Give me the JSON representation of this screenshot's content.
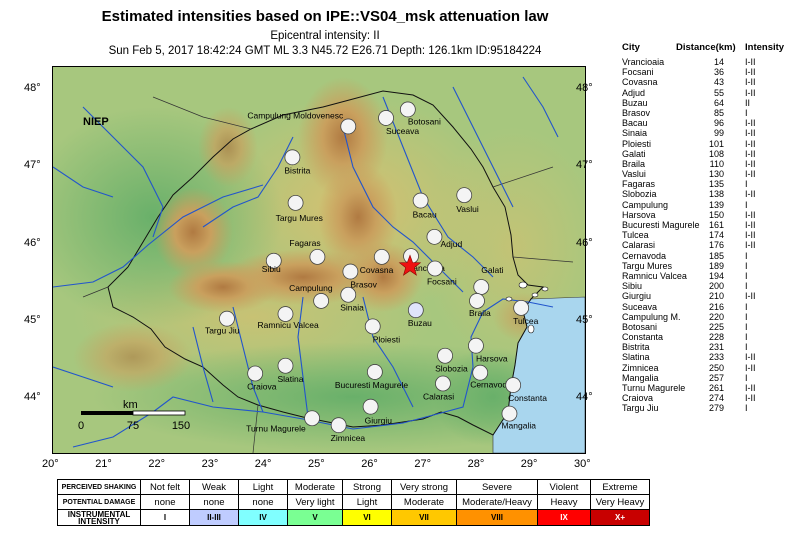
{
  "title": "Estimated intensities based on IPE::VS04_msk attenuation law",
  "epicentral": "Epicentral intensity: II",
  "event": "Sun Feb  5, 2017 18:42:24 GMT ML 3.3 N45.72 E26.71 Depth: 126.1km ID:95184224",
  "map": {
    "lon_range": [
      20,
      30
    ],
    "lat_range": [
      43.3,
      48.3
    ],
    "lon_ticks": [
      "20°",
      "21°",
      "22°",
      "23°",
      "24°",
      "25°",
      "26°",
      "27°",
      "28°",
      "29°",
      "30°"
    ],
    "lat_ticks": [
      "48°",
      "47°",
      "46°",
      "45°",
      "44°"
    ],
    "niep_label": "NIEP",
    "scale_label": "km",
    "scale_ticks": [
      "0",
      "75",
      "150"
    ],
    "epicenter": {
      "lon": 26.71,
      "lat": 45.72
    },
    "stations": [
      {
        "name": "Campulung Moldovenesc",
        "lon": 25.55,
        "lat": 47.53,
        "lx": -5,
        "ly": -8,
        "anchor": "end"
      },
      {
        "name": "Suceava",
        "lon": 26.26,
        "lat": 47.64,
        "lx": 0,
        "ly": 16,
        "anchor": "start"
      },
      {
        "name": "Botosani",
        "lon": 26.67,
        "lat": 47.75,
        "lx": 0,
        "ly": 15,
        "anchor": "start"
      },
      {
        "name": "Bistrita",
        "lon": 24.5,
        "lat": 47.13,
        "lx": -8,
        "ly": 16,
        "anchor": "start"
      },
      {
        "name": "Targu Mures",
        "lon": 24.56,
        "lat": 46.54,
        "lx": -20,
        "ly": 18,
        "anchor": "start"
      },
      {
        "name": "Bacau",
        "lon": 26.91,
        "lat": 46.57,
        "lx": -8,
        "ly": 17,
        "anchor": "start"
      },
      {
        "name": "Vaslui",
        "lon": 27.73,
        "lat": 46.64,
        "lx": -8,
        "ly": 17,
        "anchor": "start"
      },
      {
        "name": "Adjud",
        "lon": 27.17,
        "lat": 46.1,
        "lx": 6,
        "ly": 10,
        "anchor": "start"
      },
      {
        "name": "Vrancioaia",
        "lon": 26.73,
        "lat": 45.85,
        "lx": -6,
        "ly": 15,
        "anchor": "start"
      },
      {
        "name": "Focsani",
        "lon": 27.18,
        "lat": 45.69,
        "lx": -8,
        "ly": 16,
        "anchor": "start"
      },
      {
        "name": "Fagaras",
        "lon": 24.97,
        "lat": 45.84,
        "lx": -28,
        "ly": -11,
        "anchor": "start"
      },
      {
        "name": "Sibiu",
        "lon": 24.15,
        "lat": 45.79,
        "lx": -12,
        "ly": 11,
        "anchor": "start"
      },
      {
        "name": "Covasna",
        "lon": 26.18,
        "lat": 45.84,
        "lx": -22,
        "ly": 16,
        "anchor": "start"
      },
      {
        "name": "Brasov",
        "lon": 25.59,
        "lat": 45.65,
        "lx": 0,
        "ly": 16,
        "anchor": "start"
      },
      {
        "name": "Campulung",
        "lon": 25.04,
        "lat": 45.27,
        "lx": -32,
        "ly": -10,
        "anchor": "start"
      },
      {
        "name": "Sinaia",
        "lon": 25.55,
        "lat": 45.35,
        "lx": -8,
        "ly": 16,
        "anchor": "start"
      },
      {
        "name": "Galati",
        "lon": 28.05,
        "lat": 45.45,
        "lx": 0,
        "ly": -14,
        "anchor": "start"
      },
      {
        "name": "Braila",
        "lon": 27.97,
        "lat": 45.27,
        "lx": -8,
        "ly": 15,
        "anchor": "start"
      },
      {
        "name": "Tulcea",
        "lon": 28.8,
        "lat": 45.18,
        "lx": -8,
        "ly": 16,
        "anchor": "start"
      },
      {
        "name": "Buzau",
        "lon": 26.82,
        "lat": 45.15,
        "lx": -8,
        "ly": 16,
        "anchor": "start"
      },
      {
        "name": "Targu Jiu",
        "lon": 23.27,
        "lat": 45.04,
        "lx": -22,
        "ly": 15,
        "anchor": "start"
      },
      {
        "name": "Ramnicu Valcea",
        "lon": 24.37,
        "lat": 45.1,
        "lx": -28,
        "ly": 14,
        "anchor": "start"
      },
      {
        "name": "Ploiesti",
        "lon": 26.01,
        "lat": 44.94,
        "lx": 0,
        "ly": 16,
        "anchor": "start"
      },
      {
        "name": "Slobozia",
        "lon": 27.37,
        "lat": 44.56,
        "lx": -10,
        "ly": 16,
        "anchor": "start"
      },
      {
        "name": "Harsova",
        "lon": 27.95,
        "lat": 44.69,
        "lx": 0,
        "ly": 16,
        "anchor": "start"
      },
      {
        "name": "Slatina",
        "lon": 24.37,
        "lat": 44.43,
        "lx": -8,
        "ly": 16,
        "anchor": "start"
      },
      {
        "name": "Craiova",
        "lon": 23.8,
        "lat": 44.33,
        "lx": -8,
        "ly": 16,
        "anchor": "start"
      },
      {
        "name": "Bucuresti Magurele",
        "lon": 26.05,
        "lat": 44.35,
        "lx": -40,
        "ly": 16,
        "anchor": "start"
      },
      {
        "name": "Cernavoda",
        "lon": 28.03,
        "lat": 44.34,
        "lx": -10,
        "ly": 15,
        "anchor": "start"
      },
      {
        "name": "Calarasi",
        "lon": 27.33,
        "lat": 44.2,
        "lx": -20,
        "ly": 16,
        "anchor": "start"
      },
      {
        "name": "Constanta",
        "lon": 28.65,
        "lat": 44.18,
        "lx": -5,
        "ly": 16,
        "anchor": "start"
      },
      {
        "name": "Turnu Magurele",
        "lon": 24.87,
        "lat": 43.75,
        "lx": -66,
        "ly": 13,
        "anchor": "start"
      },
      {
        "name": "Zimnicea",
        "lon": 25.37,
        "lat": 43.66,
        "lx": -8,
        "ly": 16,
        "anchor": "start"
      },
      {
        "name": "Giurgiu",
        "lon": 25.97,
        "lat": 43.9,
        "lx": -6,
        "ly": 17,
        "anchor": "start"
      },
      {
        "name": "Mangalia",
        "lon": 28.58,
        "lat": 43.81,
        "lx": -8,
        "ly": 15,
        "anchor": "start"
      }
    ]
  },
  "table": {
    "headers": [
      "City",
      "Distance(km)",
      "Intensity"
    ],
    "rows": [
      [
        "Vrancioaia",
        "14",
        "I-II"
      ],
      [
        "Focsani",
        "36",
        "I-II"
      ],
      [
        "Covasna",
        "43",
        "I-II"
      ],
      [
        "Adjud",
        "55",
        "I-II"
      ],
      [
        "Buzau",
        "64",
        "II"
      ],
      [
        "Brasov",
        "85",
        "I"
      ],
      [
        "Bacau",
        "96",
        "I-II"
      ],
      [
        "Sinaia",
        "99",
        "I-II"
      ],
      [
        "Ploiesti",
        "101",
        "I-II"
      ],
      [
        "Galati",
        "108",
        "I-II"
      ],
      [
        "Braila",
        "110",
        "I-II"
      ],
      [
        "Vaslui",
        "130",
        "I-II"
      ],
      [
        "Fagaras",
        "135",
        "I"
      ],
      [
        "Slobozia",
        "138",
        "I-II"
      ],
      [
        "Campulung",
        "139",
        "I"
      ],
      [
        "Harsova",
        "150",
        "I-II"
      ],
      [
        "Bucuresti Magurele",
        "161",
        "I-II"
      ],
      [
        "Tulcea",
        "174",
        "I-II"
      ],
      [
        "Calarasi",
        "176",
        "I-II"
      ],
      [
        "Cernavoda",
        "185",
        "I"
      ],
      [
        "Targu Mures",
        "189",
        "I"
      ],
      [
        "Ramnicu Valcea",
        "194",
        "I"
      ],
      [
        "Sibiu",
        "200",
        "I"
      ],
      [
        "Giurgiu",
        "210",
        "I-II"
      ],
      [
        "Suceava",
        "216",
        "I"
      ],
      [
        "Campulung M.",
        "220",
        "I"
      ],
      [
        "Botosani",
        "225",
        "I"
      ],
      [
        "Constanta",
        "228",
        "I"
      ],
      [
        "Bistrita",
        "231",
        "I"
      ],
      [
        "Slatina",
        "233",
        "I-II"
      ],
      [
        "Zimnicea",
        "250",
        "I-II"
      ],
      [
        "Mangalia",
        "257",
        "I"
      ],
      [
        "Turnu Magurele",
        "261",
        "I-II"
      ],
      [
        "Craiova",
        "274",
        "I-II"
      ],
      [
        "Targu Jiu",
        "279",
        "I"
      ]
    ]
  },
  "legend": {
    "shaking_label": "PERCEIVED SHAKING",
    "damage_label": "POTENTIAL DAMAGE",
    "intensity_label": "INSTRUMENTAL INTENSITY",
    "shaking": [
      "Not felt",
      "Weak",
      "Light",
      "Moderate",
      "Strong",
      "Very strong",
      "Severe",
      "Violent",
      "Extreme"
    ],
    "damage": [
      "none",
      "none",
      "none",
      "Very light",
      "Light",
      "Moderate",
      "Moderate/Heavy",
      "Heavy",
      "Very Heavy"
    ],
    "intensity": [
      "I",
      "II-III",
      "IV",
      "V",
      "VI",
      "VII",
      "VIII",
      "IX",
      "X+"
    ],
    "colors": [
      "#ffffff",
      "#bfccff",
      "#a0e6ff",
      "#80ffff",
      "#7aff93",
      "#ffff00",
      "#ffc800",
      "#ff9100",
      "#ff0000",
      "#c80000"
    ]
  }
}
